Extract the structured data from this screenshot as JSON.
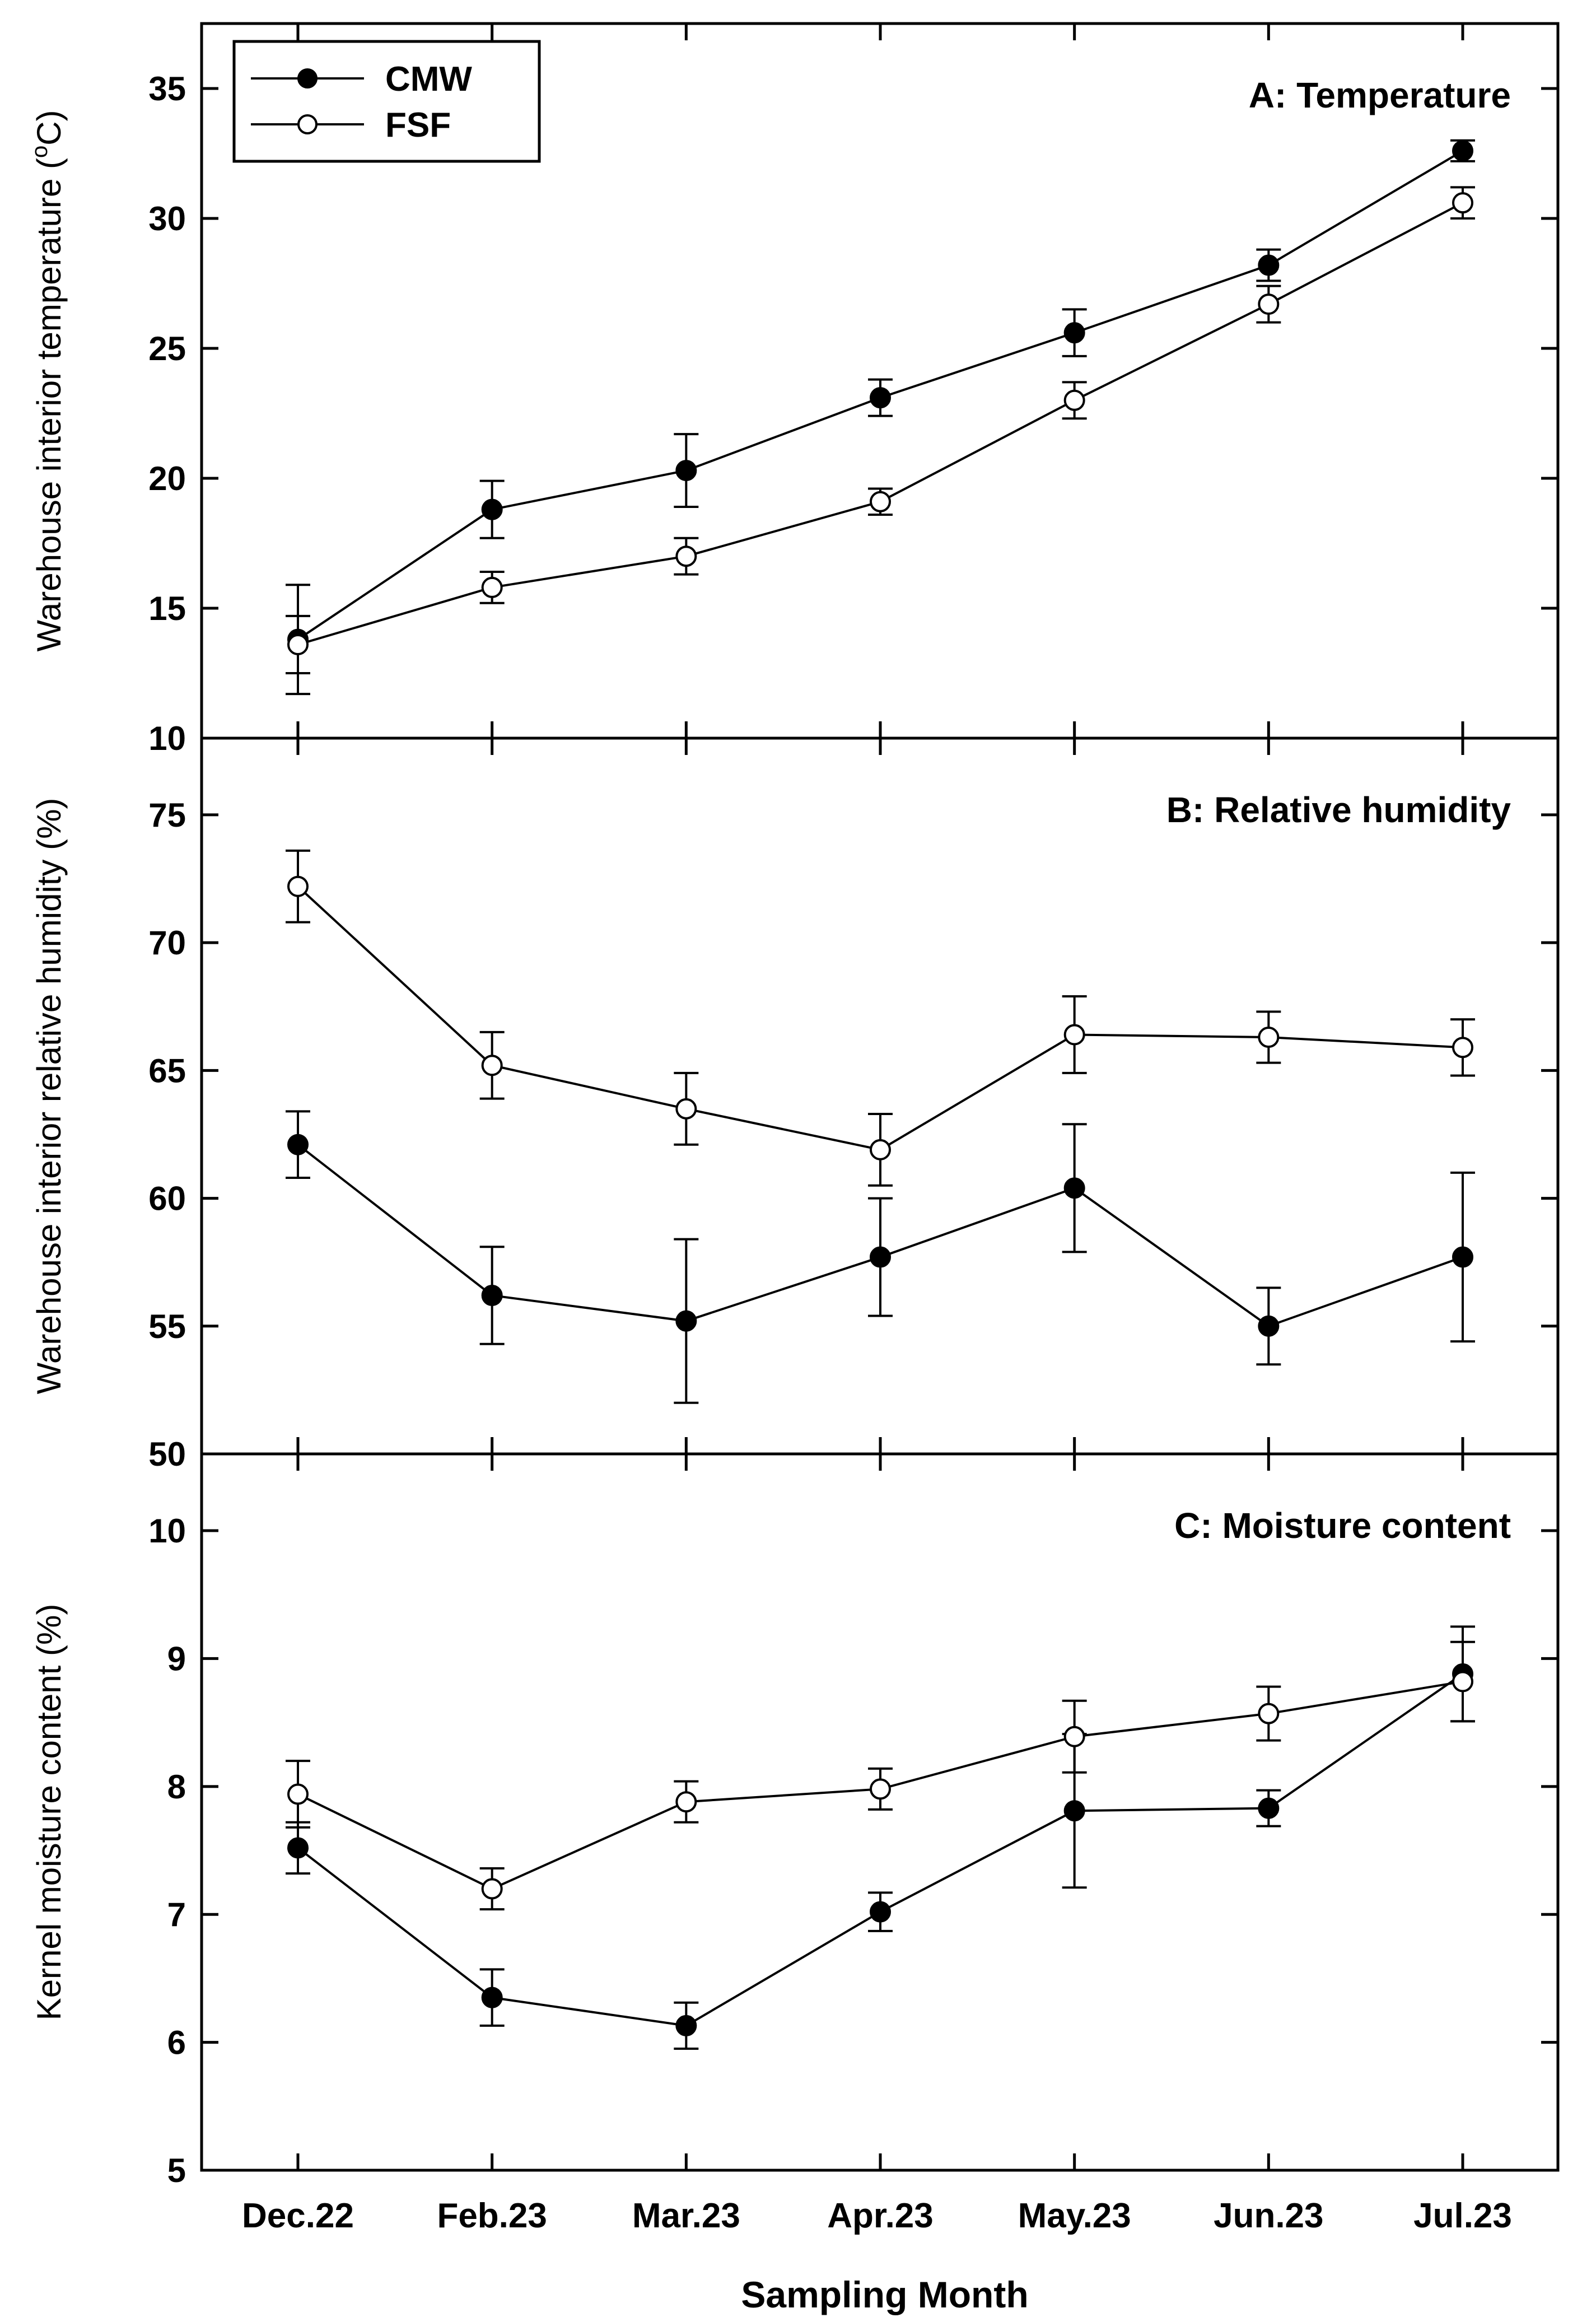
{
  "chart_data": {
    "type": "line",
    "layout": "three vertically stacked panels sharing the x-axis",
    "x": [
      "Dec.22",
      "Feb.23",
      "Mar.23",
      "Apr.23",
      "May.23",
      "Jun.23",
      "Jul.23"
    ],
    "xlabel": "Sampling Month",
    "legend": {
      "placement": "top-left",
      "entries": [
        {
          "name": "CMW",
          "marker": "filled-circle"
        },
        {
          "name": "FSF",
          "marker": "open-circle"
        }
      ]
    },
    "grid": false,
    "panels": [
      {
        "id": "A",
        "title": "A: Temperature",
        "ylabel_main": "Warehouse  interior  temperature (",
        "ylabel_sup": "o",
        "ylabel_tail": "C)",
        "ylim": [
          10,
          37.5
        ],
        "yticks": [
          "10",
          "15",
          "20",
          "25",
          "30",
          "35"
        ],
        "series": [
          {
            "name": "CMW",
            "values": [
              13.8,
              18.8,
              20.3,
              23.1,
              25.6,
              28.2,
              32.6
            ],
            "errors": [
              2.1,
              1.1,
              1.4,
              0.7,
              0.9,
              0.6,
              0.4
            ]
          },
          {
            "name": "FSF",
            "values": [
              13.6,
              15.8,
              17.0,
              19.1,
              23.0,
              26.7,
              30.6
            ],
            "errors": [
              1.1,
              0.6,
              0.7,
              0.5,
              0.7,
              0.7,
              0.6
            ]
          }
        ]
      },
      {
        "id": "B",
        "title": "B: Relative humidity",
        "ylabel": "Warehouse interior relative humidity (%)",
        "ylim": [
          50,
          78
        ],
        "yticks": [
          "50",
          "55",
          "60",
          "65",
          "70",
          "75"
        ],
        "series": [
          {
            "name": "CMW",
            "values": [
              62.1,
              56.2,
              55.2,
              57.7,
              60.4,
              55.0,
              57.7
            ],
            "errors": [
              1.3,
              1.9,
              3.2,
              2.3,
              2.5,
              1.5,
              3.3
            ]
          },
          {
            "name": "FSF",
            "values": [
              72.2,
              65.2,
              63.5,
              61.9,
              66.4,
              66.3,
              65.9
            ],
            "errors": [
              1.4,
              1.3,
              1.4,
              1.4,
              1.5,
              1.0,
              1.1
            ]
          }
        ]
      },
      {
        "id": "C",
        "title": "C: Moisture content",
        "ylabel": "Kernel moisture content (%)",
        "ylim": [
          5,
          10.6
        ],
        "yticks": [
          "5",
          "6",
          "7",
          "8",
          "9",
          "10"
        ],
        "series": [
          {
            "name": "CMW",
            "values": [
              7.52,
              6.35,
              6.13,
              7.02,
              7.81,
              7.83,
              8.88
            ],
            "errors": [
              0.2,
              0.22,
              0.18,
              0.15,
              0.6,
              0.14,
              0.37
            ]
          },
          {
            "name": "FSF",
            "values": [
              7.94,
              7.2,
              7.88,
              7.98,
              8.39,
              8.57,
              8.82
            ],
            "errors": [
              0.26,
              0.16,
              0.16,
              0.16,
              0.28,
              0.21,
              0.31
            ]
          }
        ]
      }
    ]
  }
}
